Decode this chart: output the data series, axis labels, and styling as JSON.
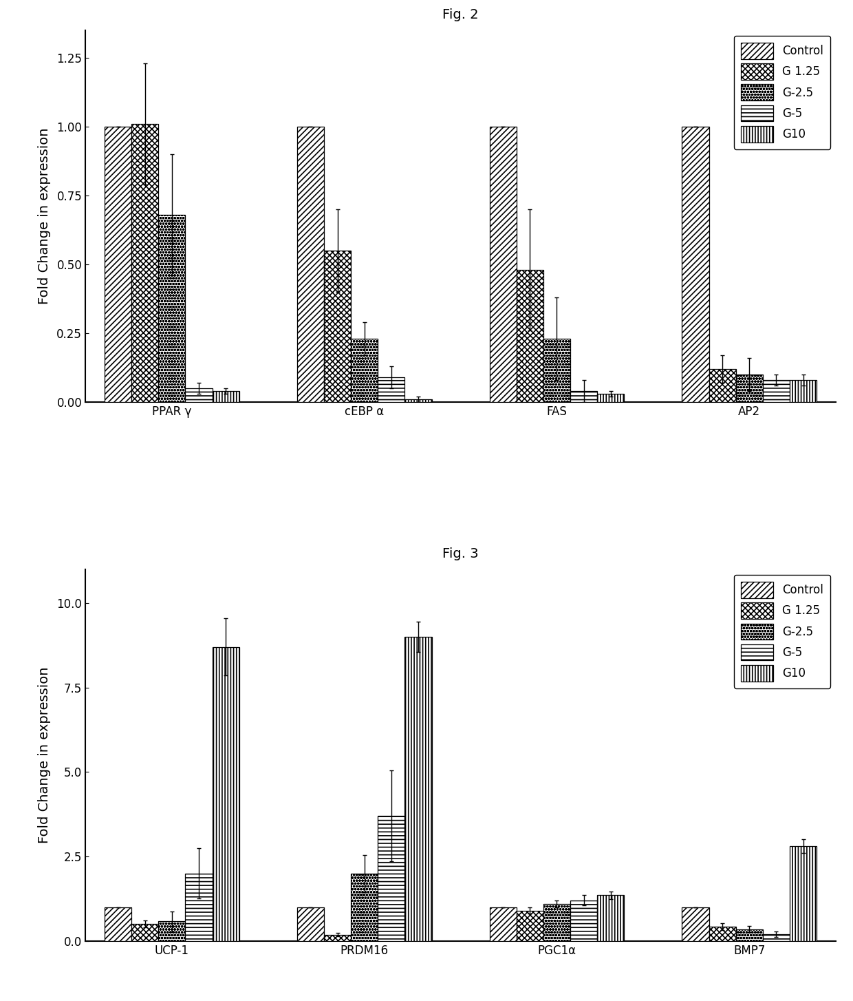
{
  "fig2_title": "Fig. 2",
  "fig3_title": "Fig. 3",
  "ylabel": "Fold Change in expression",
  "fig2_categories": [
    "PPAR γ",
    "cEBP α",
    "FAS",
    "AP2"
  ],
  "fig2_series_labels": [
    "Control",
    "G 1.25",
    "G-2.5",
    "G-5",
    "G10"
  ],
  "fig2_values": [
    [
      1.0,
      1.0,
      1.0,
      1.0
    ],
    [
      1.01,
      0.55,
      0.48,
      0.12
    ],
    [
      0.68,
      0.23,
      0.23,
      0.1
    ],
    [
      0.05,
      0.09,
      0.04,
      0.08
    ],
    [
      0.04,
      0.01,
      0.03,
      0.08
    ]
  ],
  "fig2_errors": [
    [
      0.0,
      0.0,
      0.0,
      0.0
    ],
    [
      0.22,
      0.15,
      0.22,
      0.05
    ],
    [
      0.22,
      0.06,
      0.15,
      0.06
    ],
    [
      0.02,
      0.04,
      0.04,
      0.02
    ],
    [
      0.01,
      0.01,
      0.01,
      0.02
    ]
  ],
  "fig2_ylim": [
    0,
    1.35
  ],
  "fig2_yticks": [
    0.0,
    0.25,
    0.5,
    0.75,
    1.0,
    1.25
  ],
  "fig3_categories": [
    "UCP-1",
    "PRDM16",
    "PGC1α",
    "BMP7"
  ],
  "fig3_series_labels": [
    "Control",
    "G 1.25",
    "G-2.5",
    "G-5",
    "G10"
  ],
  "fig3_values": [
    [
      1.0,
      1.0,
      1.0,
      1.0
    ],
    [
      0.5,
      0.18,
      0.9,
      0.42
    ],
    [
      0.58,
      2.0,
      1.1,
      0.35
    ],
    [
      2.0,
      3.7,
      1.2,
      0.2
    ],
    [
      8.7,
      9.0,
      1.35,
      2.8
    ]
  ],
  "fig3_errors": [
    [
      0.0,
      0.0,
      0.0,
      0.0
    ],
    [
      0.1,
      0.05,
      0.1,
      0.1
    ],
    [
      0.3,
      0.55,
      0.1,
      0.1
    ],
    [
      0.75,
      1.35,
      0.15,
      0.08
    ],
    [
      0.85,
      0.45,
      0.12,
      0.2
    ]
  ],
  "fig3_ylim": [
    0,
    11.0
  ],
  "fig3_yticks": [
    0.0,
    2.5,
    5.0,
    7.5,
    10.0
  ],
  "bar_width": 0.14,
  "figsize": [
    12.4,
    14.54
  ],
  "dpi": 100,
  "legend_fontsize": 12,
  "axis_fontsize": 14,
  "tick_fontsize": 12,
  "title_fontsize": 14
}
